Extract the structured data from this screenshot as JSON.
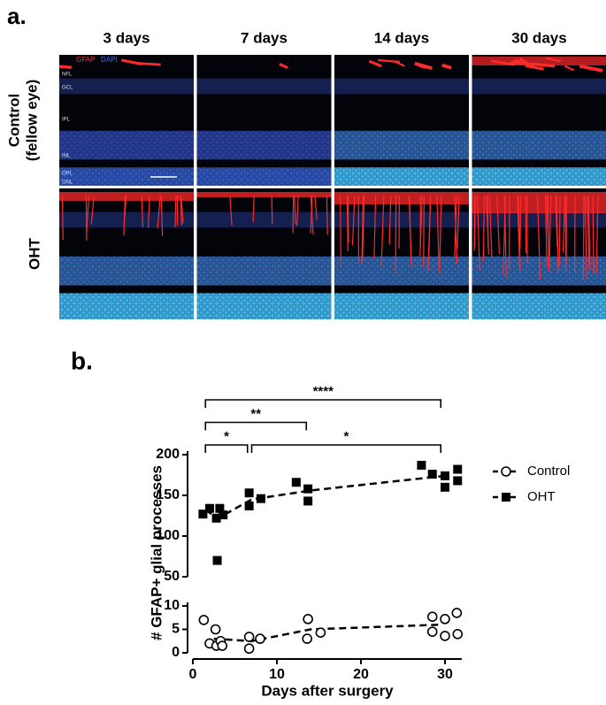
{
  "panel_a": {
    "label": "a.",
    "column_titles": [
      "3 days",
      "7 days",
      "14 days",
      "30 days"
    ],
    "row_labels": [
      {
        "lines": [
          "Control",
          "(fellow eye)"
        ]
      },
      {
        "lines": [
          "OHT"
        ]
      }
    ],
    "stains": [
      "GFAP",
      "DAPI"
    ],
    "layers": [
      "NFL",
      "GCL",
      "IPL",
      "INL",
      "OPL",
      "ONL"
    ]
  },
  "chart_data": {
    "type": "scatter",
    "panel_label": "b.",
    "x_label": "Days after surgery",
    "y_label": "# GFAP+ glial processes",
    "xlim": [
      0,
      32
    ],
    "xticks": [
      0,
      10,
      20,
      30
    ],
    "y_segments": [
      {
        "ylim": [
          0,
          10
        ],
        "yticks": [
          0,
          5,
          10
        ]
      },
      {
        "ylim": [
          50,
          200
        ],
        "yticks": [
          50,
          100,
          150,
          200
        ]
      }
    ],
    "legend": "right",
    "series": [
      {
        "name": "Control",
        "marker": "open-circle",
        "color": "#000000",
        "x": [
          1.3,
          2,
          2.7,
          2.8,
          3.3,
          3.5,
          6.7,
          6.7,
          8,
          13.7,
          13.6,
          15.2,
          28.5,
          28.5,
          30,
          30,
          31.4,
          31.5
        ],
        "values": [
          7,
          2,
          5,
          1.5,
          2.5,
          1.5,
          3.4,
          0.9,
          3,
          7.2,
          3,
          4.3,
          7.7,
          4.5,
          3.6,
          7.2,
          8.5,
          4
        ],
        "mean_x": [
          2.5,
          7,
          14,
          29.5
        ],
        "mean_values": [
          3,
          2.5,
          5,
          6
        ]
      },
      {
        "name": "OHT",
        "marker": "filled-square",
        "color": "#000000",
        "x": [
          1.2,
          2,
          2.8,
          3.2,
          3.6,
          2.9,
          6.7,
          6.7,
          8.1,
          12.3,
          13.7,
          13.7,
          27.2,
          28.5,
          30,
          30,
          31.5,
          31.5
        ],
        "values": [
          127,
          134,
          122,
          134,
          126,
          70,
          153,
          137,
          146,
          166,
          158,
          143,
          187,
          176,
          160,
          174,
          182,
          168
        ],
        "mean_x": [
          1.5,
          3,
          7,
          14,
          30
        ],
        "mean_values": [
          132,
          122,
          145,
          156,
          174
        ]
      }
    ],
    "significance": [
      {
        "x": [
          1.5,
          6.5
        ],
        "label": "*"
      },
      {
        "x": [
          7,
          29.5
        ],
        "label": "*"
      },
      {
        "x": [
          1.5,
          13.5
        ],
        "label": "**"
      },
      {
        "x": [
          1.5,
          29.5
        ],
        "label": "****"
      }
    ]
  }
}
